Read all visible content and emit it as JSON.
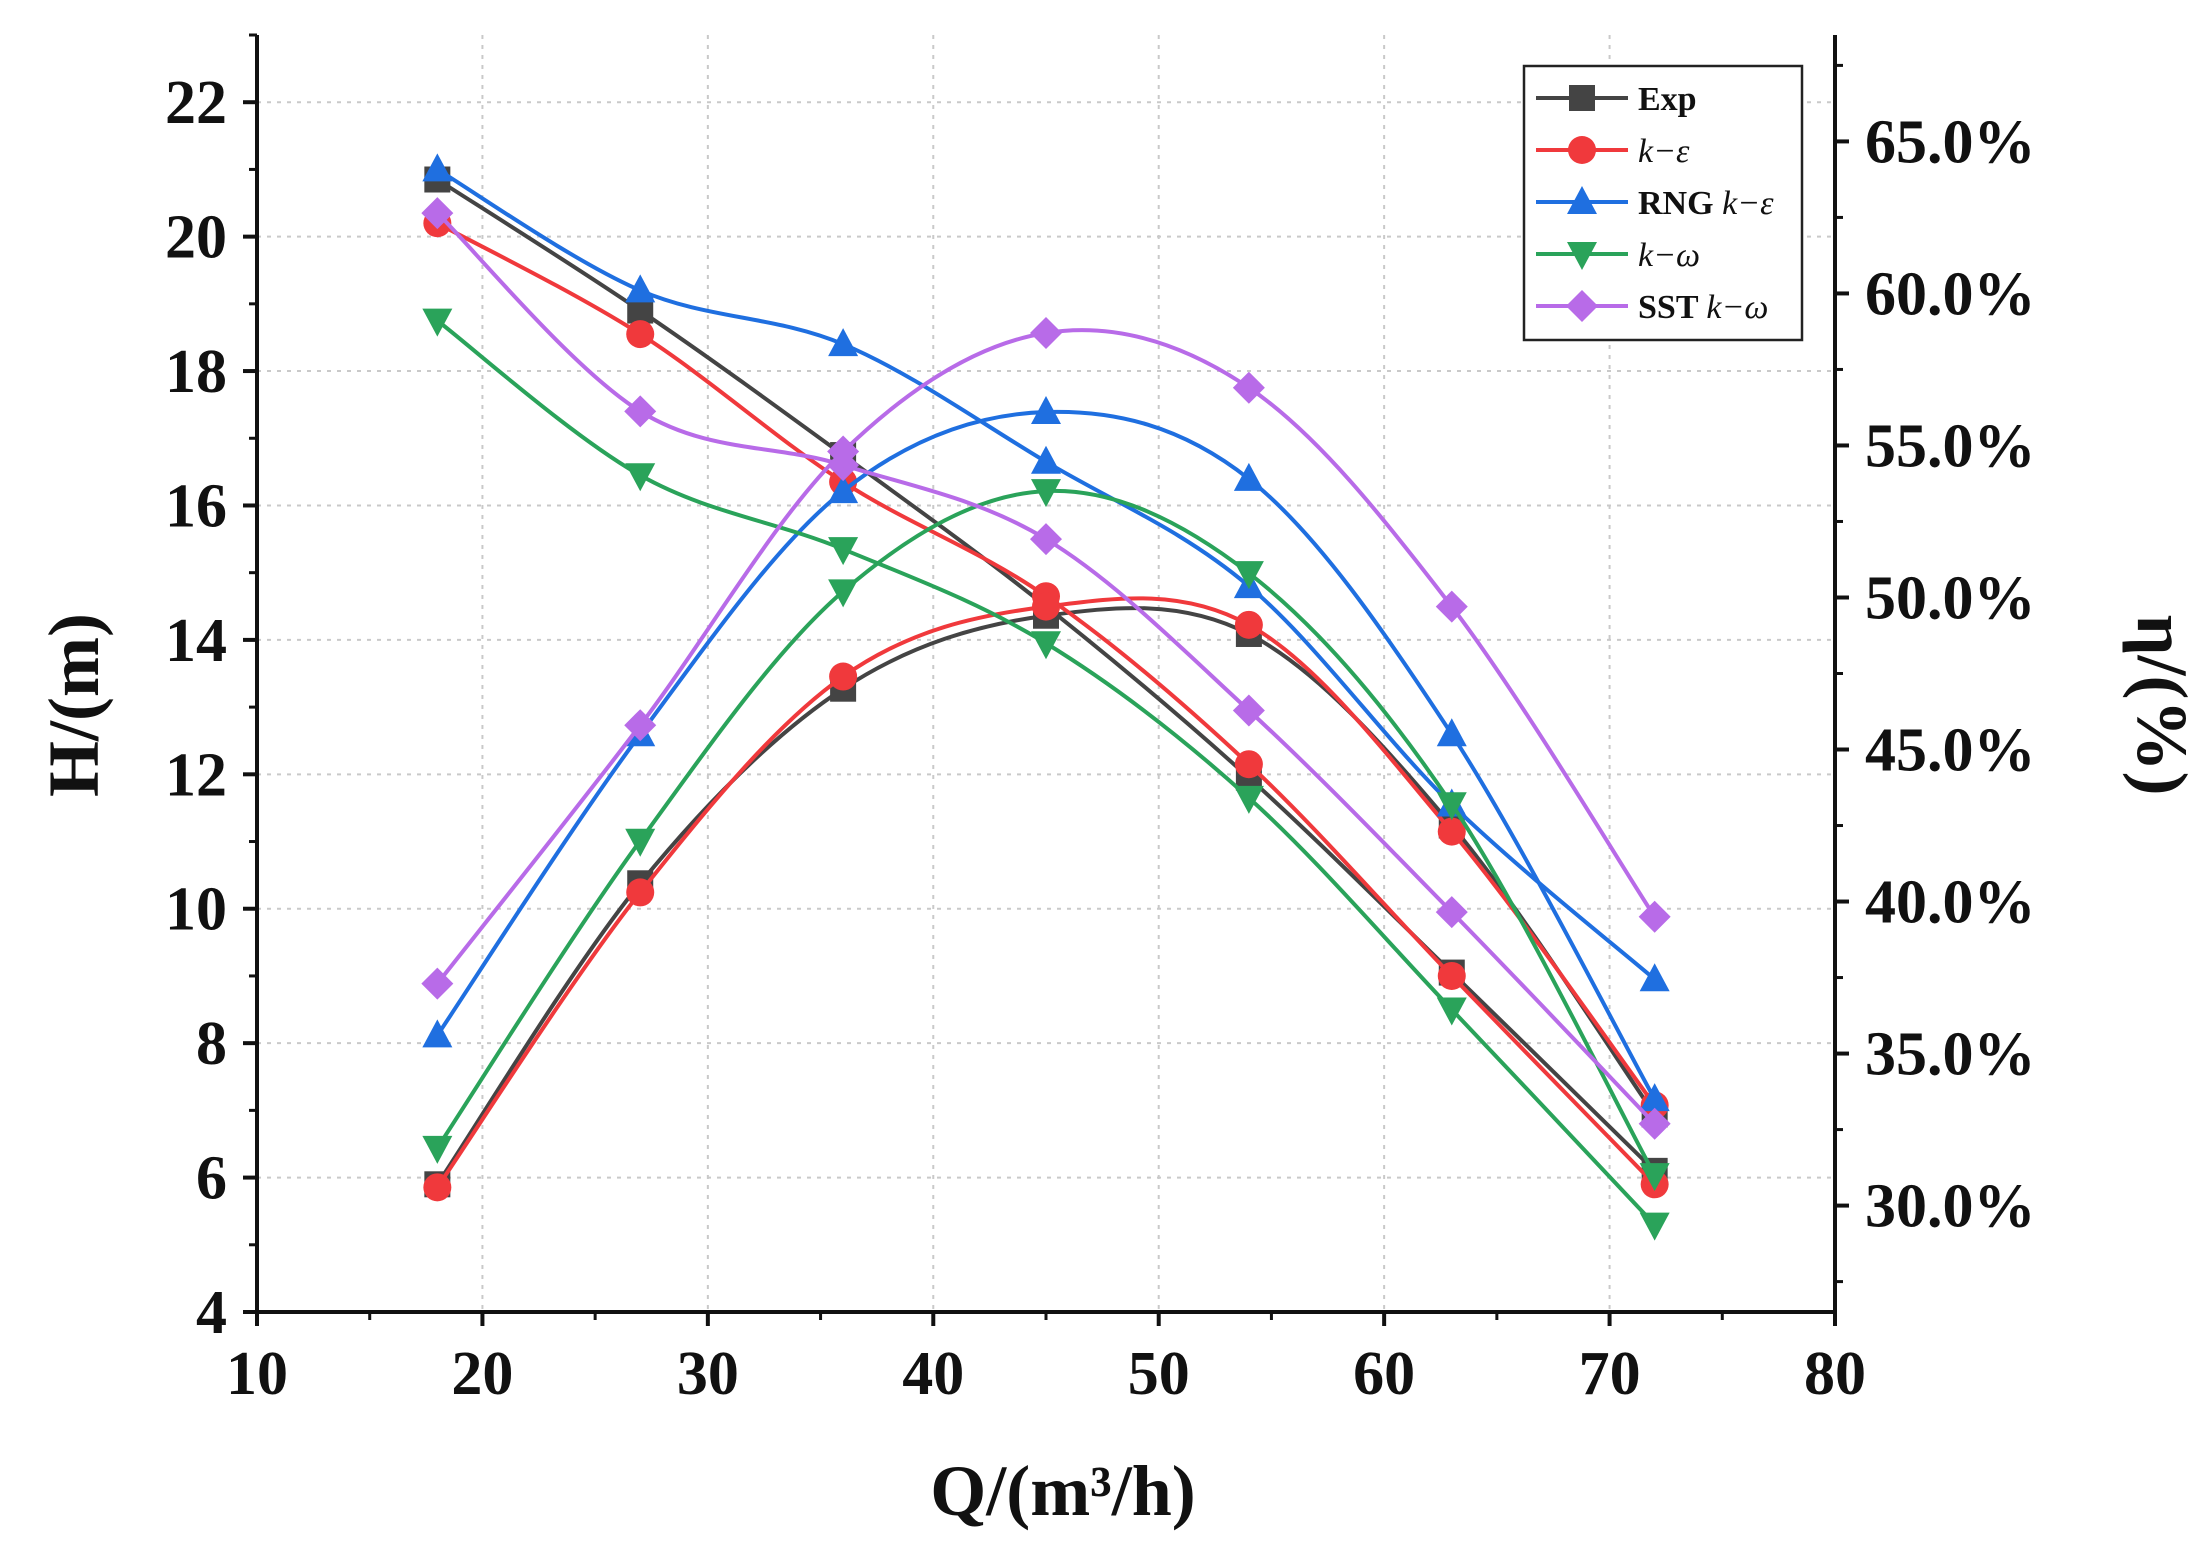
{
  "chart_data": {
    "type": "line",
    "xlabel": "Q/(m³/h)",
    "ylabel_left": "H/(m)",
    "ylabel_right": "η/(%)",
    "xlim": [
      10,
      80
    ],
    "ylim_left": [
      4,
      23
    ],
    "ylim_right": [
      26.5,
      68.5
    ],
    "x_ticks": [
      10,
      20,
      30,
      40,
      50,
      60,
      70,
      80
    ],
    "y_left_ticks": [
      4,
      6,
      8,
      10,
      12,
      14,
      16,
      18,
      20,
      22
    ],
    "y_right_ticks": [
      30,
      35,
      40,
      45,
      50,
      55,
      60,
      65
    ],
    "y_right_tick_labels": [
      "30.0%",
      "35.0%",
      "40.0%",
      "45.0%",
      "50.0%",
      "55.0%",
      "60.0%",
      "65.0%"
    ],
    "grid": true,
    "legend_position": "top-right",
    "x": [
      18,
      27,
      36,
      45,
      54,
      63,
      72
    ],
    "series": [
      {
        "name": "Exp",
        "color": "#444444",
        "marker": "square",
        "head_left_axis": [
          20.85,
          18.9,
          16.75,
          14.5,
          11.95,
          9.05,
          6.1
        ],
        "efficiency_right_axis": [
          30.7,
          40.6,
          47.0,
          49.4,
          48.8,
          42.5,
          33.0
        ]
      },
      {
        "name": "k−ε",
        "color": "#f0393c",
        "marker": "circle",
        "head_left_axis": [
          20.2,
          18.55,
          16.35,
          14.65,
          12.15,
          9.0,
          5.9
        ],
        "efficiency_right_axis": [
          30.6,
          40.3,
          47.4,
          49.7,
          49.1,
          42.3,
          33.3
        ]
      },
      {
        "name": "RNG k−ε",
        "color": "#1f6fe0",
        "marker": "triangle-up",
        "head_left_axis": [
          21.0,
          19.2,
          18.4,
          16.65,
          14.8,
          11.55,
          8.95
        ],
        "efficiency_right_axis": [
          35.6,
          45.5,
          53.5,
          56.1,
          53.9,
          45.5,
          33.5
        ]
      },
      {
        "name": "k−ω",
        "color": "#2aa35a",
        "marker": "triangle-down",
        "head_left_axis": [
          18.75,
          16.45,
          15.35,
          13.95,
          11.65,
          8.5,
          5.3
        ],
        "efficiency_right_axis": [
          31.9,
          42.0,
          50.2,
          53.5,
          50.8,
          43.2,
          31.0
        ]
      },
      {
        "name": "SST k−ω",
        "color": "#b86be8",
        "marker": "diamond",
        "head_left_axis": [
          20.35,
          17.4,
          16.6,
          15.5,
          12.95,
          9.95,
          6.8
        ],
        "efficiency_right_axis": [
          37.3,
          45.8,
          54.8,
          58.7,
          56.9,
          49.7,
          39.5
        ]
      }
    ]
  }
}
